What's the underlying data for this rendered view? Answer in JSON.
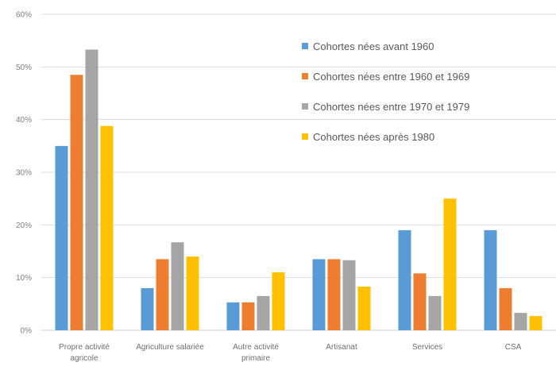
{
  "chart_data": {
    "type": "bar",
    "title": "",
    "xlabel": "",
    "ylabel": "",
    "ylim": [
      0,
      60
    ],
    "ytick_values": [
      0,
      10,
      20,
      30,
      40,
      50,
      60
    ],
    "ytick_labels": [
      "0%",
      "10%",
      "20%",
      "30%",
      "40%",
      "50%",
      "60%"
    ],
    "grid": true,
    "legend_position": "top-right",
    "categories": [
      [
        "Propre activité",
        "agricole"
      ],
      [
        "Agriculture salariée"
      ],
      [
        "Autre activité",
        "primaire"
      ],
      [
        "Artisanat"
      ],
      [
        "Services"
      ],
      [
        "CSA"
      ]
    ],
    "series": [
      {
        "name": "Cohortes nées avant 1960",
        "color": "#5b9bd5",
        "values": [
          35,
          8,
          5.3,
          13.5,
          19,
          19
        ]
      },
      {
        "name": "Cohortes nées entre 1960 et 1969",
        "color": "#ed7d31",
        "values": [
          48.5,
          13.5,
          5.3,
          13.5,
          10.8,
          8
        ]
      },
      {
        "name": "Cohortes nées entre 1970 et 1979",
        "color": "#a5a5a5",
        "values": [
          53.3,
          16.7,
          6.5,
          13.3,
          6.5,
          3.3
        ]
      },
      {
        "name": "Cohortes nées après 1980",
        "color": "#ffc000",
        "values": [
          38.8,
          14,
          11,
          8.3,
          25,
          2.7
        ]
      }
    ]
  }
}
